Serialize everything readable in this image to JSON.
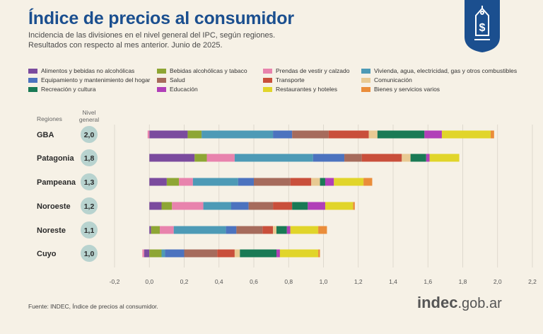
{
  "header": {
    "title": "Índice de precios al consumidor",
    "subtitle_line1": "Incidencia de las divisiones en el nivel general del IPC, según regiones.",
    "subtitle_line2": "Resultados con respecto al mes anterior. Junio de 2025."
  },
  "badge_icon": "price-tag-dollar-icon",
  "table_headers": {
    "regions": "Regiones",
    "level_line1": "Nivel",
    "level_line2": "general"
  },
  "chart_data": {
    "type": "bar",
    "orientation": "horizontal",
    "stacked": true,
    "title": "Índice de precios al consumidor",
    "xlim": [
      -0.2,
      2.2
    ],
    "xticks": [
      "-0,2",
      "0,0",
      "0,2",
      "0,4",
      "0,6",
      "0,8",
      "1,0",
      "1,2",
      "1,4",
      "1,6",
      "1,8",
      "2,0",
      "2,2"
    ],
    "grid": "vertical",
    "legend_position": "top",
    "categories": [
      "GBA",
      "Patagonia",
      "Pampeana",
      "Noroeste",
      "Noreste",
      "Cuyo"
    ],
    "general_level": [
      "2,0",
      "1,8",
      "1,3",
      "1,2",
      "1,1",
      "1,0"
    ],
    "series": [
      {
        "name": "Alimentos y bebidas no alcohólicas",
        "color": "#7b4b9e",
        "values": [
          0.22,
          0.26,
          0.1,
          0.07,
          0.01,
          -0.03
        ]
      },
      {
        "name": "Bebidas alcohólicas y tabaco",
        "color": "#8ea634",
        "values": [
          0.08,
          0.07,
          0.07,
          0.06,
          0.05,
          0.07
        ]
      },
      {
        "name": "Prendas de vestir y calzado",
        "color": "#e883ad",
        "values": [
          -0.01,
          0.16,
          0.08,
          0.18,
          0.08,
          -0.01
        ]
      },
      {
        "name": "Vivienda, agua, electricidad, gas y otros combustibles",
        "color": "#4d9ab6",
        "values": [
          0.41,
          0.45,
          0.26,
          0.16,
          0.3,
          0.02
        ]
      },
      {
        "name": "Equipamiento y mantenimiento del hogar",
        "color": "#4c73bf",
        "values": [
          0.11,
          0.18,
          0.09,
          0.1,
          0.06,
          0.11
        ]
      },
      {
        "name": "Salud",
        "color": "#a66b5c",
        "values": [
          0.21,
          0.1,
          0.21,
          0.14,
          0.15,
          0.19
        ]
      },
      {
        "name": "Transporte",
        "color": "#c94f3b",
        "values": [
          0.23,
          0.23,
          0.12,
          0.11,
          0.06,
          0.1
        ]
      },
      {
        "name": "Comunicación",
        "color": "#e8ca93",
        "values": [
          0.05,
          0.05,
          0.05,
          0.0,
          0.02,
          0.03
        ]
      },
      {
        "name": "Recreación y cultura",
        "color": "#1a7a55",
        "values": [
          0.27,
          0.09,
          0.03,
          0.09,
          0.06,
          0.21
        ]
      },
      {
        "name": "Educación",
        "color": "#b13fb8",
        "values": [
          0.1,
          0.02,
          0.05,
          0.1,
          0.02,
          0.02
        ]
      },
      {
        "name": "Restaurantes y hoteles",
        "color": "#e1d52a",
        "values": [
          0.28,
          0.17,
          0.17,
          0.16,
          0.16,
          0.22
        ]
      },
      {
        "name": "Bienes y servicios varios",
        "color": "#ea8d3a",
        "values": [
          0.02,
          0.0,
          0.05,
          0.01,
          0.05,
          0.01
        ]
      }
    ]
  },
  "footer": {
    "source": "Fuente: INDEC, Índice de precios al consumidor.",
    "logo_bold": "indec",
    "logo_rest": ".gob.ar"
  }
}
